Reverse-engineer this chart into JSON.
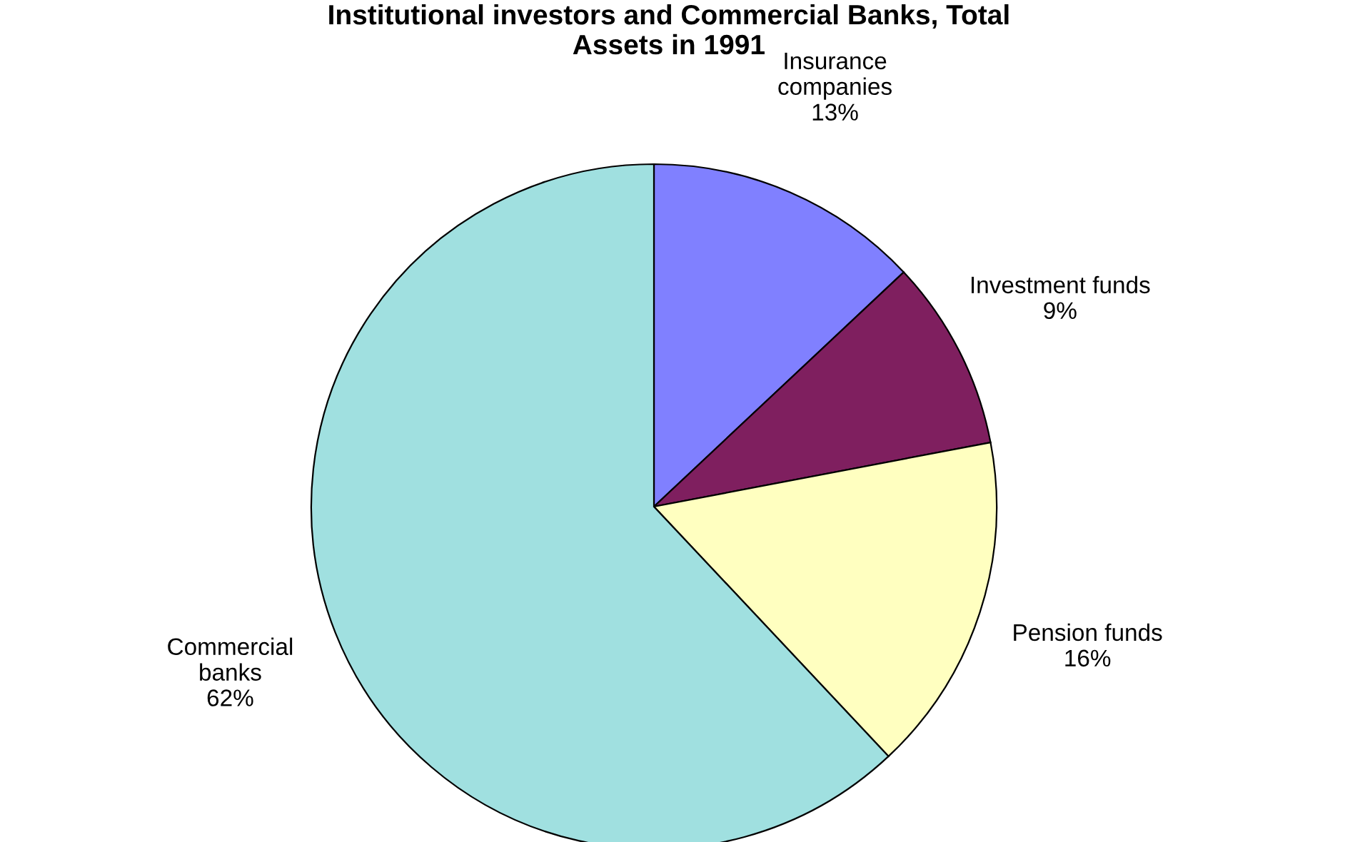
{
  "chart_data": {
    "type": "pie",
    "title": "Institutional investors and Commercial Banks, Total\nAssets in 1991",
    "categories": [
      "Insurance\ncompanies",
      "Investment funds",
      "Pension funds",
      "Commercial\nbanks"
    ],
    "values": [
      13,
      9,
      16,
      62
    ],
    "value_labels": [
      "13%",
      "9%",
      "16%",
      "62%"
    ],
    "colors": [
      "#8080ff",
      "#7f1f5f",
      "#ffffc0",
      "#a0e0e0"
    ],
    "legend": false
  }
}
